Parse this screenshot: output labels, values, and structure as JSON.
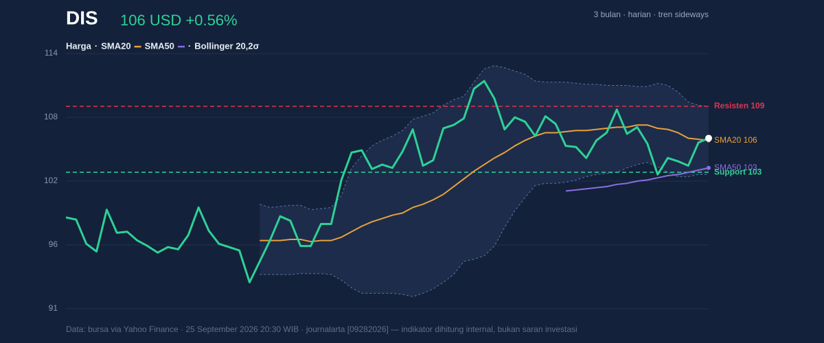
{
  "chart_data": {
    "type": "line",
    "title": "DIS",
    "subtitle": "106 USD +0.56%",
    "note_right": "3 bulan · harian · tren sideways",
    "footer": "Data: bursa via Yahoo Finance · 25 September 2026 20:30 WIB · journalarta [09282026] — indikator dihitung internal, bukan saran investasi",
    "legend_separator": "·",
    "ylim": [
      90.6,
      113.8
    ],
    "yticks": [
      {
        "value": 90.6,
        "label": "91"
      },
      {
        "value": 96.4,
        "label": "96"
      },
      {
        "value": 102.2,
        "label": "102"
      },
      {
        "value": 108.0,
        "label": "108"
      },
      {
        "value": 113.8,
        "label": "114"
      }
    ],
    "grid": true,
    "categories": [
      null,
      null,
      null,
      null,
      null,
      null,
      null,
      null,
      null,
      null,
      null,
      null,
      null,
      null,
      null,
      null,
      null,
      null,
      null,
      null,
      null,
      null,
      null,
      null,
      null,
      null,
      null,
      null,
      null,
      null,
      null,
      null,
      null,
      null,
      null,
      null,
      null,
      null,
      null,
      null,
      null,
      null,
      null,
      null,
      null,
      null,
      null,
      null,
      null,
      null,
      null,
      null,
      null,
      null,
      null,
      null,
      null,
      null,
      null,
      null,
      null,
      null,
      null,
      null
    ],
    "series": [
      {
        "name": "Harga",
        "color": "#2ed196",
        "values": [
          98.9,
          98.7,
          96.5,
          95.8,
          99.6,
          97.5,
          97.6,
          96.8,
          96.3,
          95.7,
          96.2,
          96.0,
          97.3,
          99.8,
          97.7,
          96.5,
          96.2,
          95.9,
          93.0,
          94.9,
          96.8,
          99.0,
          98.6,
          96.3,
          96.3,
          98.3,
          98.3,
          102.3,
          104.8,
          105.0,
          103.3,
          103.7,
          103.4,
          104.9,
          106.9,
          103.6,
          104.1,
          107.0,
          107.3,
          107.9,
          110.6,
          111.3,
          109.7,
          106.9,
          108.0,
          107.6,
          106.3,
          108.1,
          107.4,
          105.4,
          105.3,
          104.3,
          105.9,
          106.6,
          108.7,
          106.5,
          107.1,
          105.6,
          102.8,
          104.3,
          104.0,
          103.6,
          105.7,
          106.1
        ]
      },
      {
        "name": "SMA20",
        "color": "#e8a23a",
        "end_label": "SMA20 106",
        "values": [
          null,
          null,
          null,
          null,
          null,
          null,
          null,
          null,
          null,
          null,
          null,
          null,
          null,
          null,
          null,
          null,
          null,
          null,
          null,
          96.8,
          96.8,
          96.8,
          96.9,
          96.9,
          96.7,
          96.8,
          96.8,
          97.1,
          97.6,
          98.1,
          98.5,
          98.8,
          99.1,
          99.3,
          99.8,
          100.1,
          100.5,
          101.0,
          101.7,
          102.4,
          103.1,
          103.7,
          104.3,
          104.8,
          105.4,
          105.9,
          106.3,
          106.6,
          106.6,
          106.7,
          106.8,
          106.8,
          106.9,
          107.0,
          107.1,
          107.1,
          107.3,
          107.3,
          107.0,
          106.9,
          106.6,
          106.1,
          106.0,
          105.9
        ]
      },
      {
        "name": "SMA50",
        "color": "#8a6fe3",
        "end_label": "SMA50 103",
        "values": [
          null,
          null,
          null,
          null,
          null,
          null,
          null,
          null,
          null,
          null,
          null,
          null,
          null,
          null,
          null,
          null,
          null,
          null,
          null,
          null,
          null,
          null,
          null,
          null,
          null,
          null,
          null,
          null,
          null,
          null,
          null,
          null,
          null,
          null,
          null,
          null,
          null,
          null,
          null,
          null,
          null,
          null,
          null,
          null,
          null,
          null,
          null,
          null,
          null,
          101.3,
          101.4,
          101.5,
          101.6,
          101.7,
          101.9,
          102.0,
          102.2,
          102.3,
          102.5,
          102.7,
          102.8,
          103.0,
          103.2,
          103.4
        ]
      }
    ],
    "bollinger": {
      "name": "Bollinger 20,2σ",
      "color": "#5a76a8",
      "fill": "#1d2c4a",
      "upper": [
        null,
        null,
        null,
        null,
        null,
        null,
        null,
        null,
        null,
        null,
        null,
        null,
        null,
        null,
        null,
        null,
        null,
        null,
        null,
        100.1,
        99.8,
        99.9,
        100.0,
        100.0,
        99.6,
        99.7,
        99.8,
        100.9,
        103.4,
        104.5,
        105.4,
        105.9,
        106.3,
        106.8,
        107.8,
        108.1,
        108.4,
        109.1,
        109.6,
        109.9,
        111.2,
        112.4,
        112.7,
        112.5,
        112.2,
        111.9,
        111.3,
        111.2,
        111.2,
        111.2,
        111.1,
        111.0,
        111.0,
        110.9,
        110.9,
        110.9,
        110.8,
        110.8,
        111.1,
        110.9,
        110.3,
        109.4,
        109.1,
        109.0
      ],
      "lower": [
        null,
        null,
        null,
        null,
        null,
        null,
        null,
        null,
        null,
        null,
        null,
        null,
        null,
        null,
        null,
        null,
        null,
        null,
        null,
        93.7,
        93.7,
        93.7,
        93.7,
        93.8,
        93.8,
        93.8,
        93.7,
        93.2,
        92.5,
        92.0,
        92.0,
        92.0,
        92.0,
        91.9,
        91.7,
        92.0,
        92.4,
        93.0,
        93.7,
        94.9,
        95.1,
        95.4,
        96.3,
        98.0,
        99.5,
        100.7,
        101.8,
        102.0,
        102.0,
        102.1,
        102.3,
        102.6,
        102.8,
        102.9,
        103.0,
        103.4,
        103.7,
        103.9,
        103.5,
        103.0,
        102.6,
        102.6,
        102.8,
        102.8
      ]
    },
    "hlines": [
      {
        "label": "Resisten 109",
        "value": 109,
        "color": "#e0344f"
      },
      {
        "label": "Support 103",
        "value": 103,
        "color": "#2ed196"
      }
    ]
  }
}
